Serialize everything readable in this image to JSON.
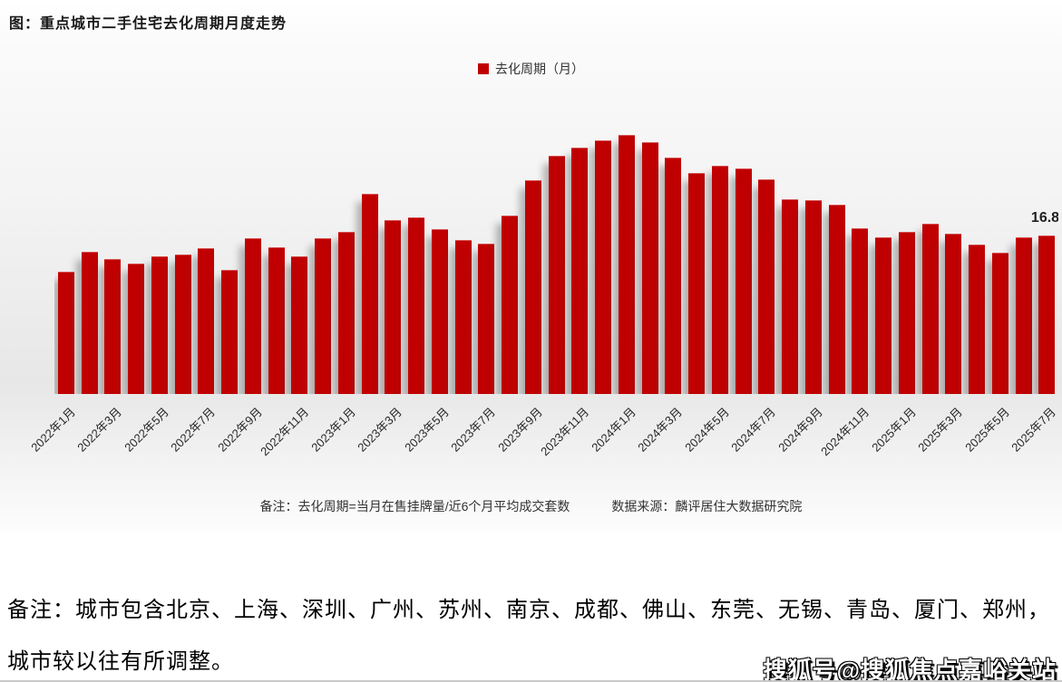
{
  "title": "图：重点城市二手住宅去化周期月度走势",
  "legend": {
    "label": "去化周期（月）",
    "color": "#c00000"
  },
  "chart_data": {
    "type": "bar",
    "title": "重点城市二手住宅去化周期月度走势",
    "series_name": "去化周期（月）",
    "categories": [
      "2022年1月",
      "2022年2月",
      "2022年3月",
      "2022年4月",
      "2022年5月",
      "2022年6月",
      "2022年7月",
      "2022年8月",
      "2022年9月",
      "2022年10月",
      "2022年11月",
      "2022年12月",
      "2023年1月",
      "2023年2月",
      "2023年3月",
      "2023年4月",
      "2023年5月",
      "2023年6月",
      "2023年7月",
      "2023年8月",
      "2023年9月",
      "2023年10月",
      "2023年11月",
      "2023年12月",
      "2024年1月",
      "2024年2月",
      "2024年3月",
      "2024年4月",
      "2024年5月",
      "2024年6月",
      "2024年7月",
      "2024年8月",
      "2024年9月",
      "2024年10月",
      "2024年11月",
      "2024年12月",
      "2025年1月",
      "2025年2月",
      "2025年3月",
      "2025年4月",
      "2025年5月",
      "2025年6月",
      "2025年7月"
    ],
    "values": [
      13.0,
      15.1,
      14.3,
      13.8,
      14.6,
      14.8,
      15.4,
      13.1,
      16.5,
      15.5,
      14.6,
      16.5,
      17.2,
      21.2,
      18.4,
      18.7,
      17.5,
      16.3,
      15.9,
      18.9,
      22.6,
      25.2,
      26.1,
      26.9,
      27.4,
      26.7,
      25.0,
      23.4,
      24.2,
      23.9,
      22.7,
      20.6,
      20.5,
      20.1,
      17.6,
      16.6,
      17.2,
      18.0,
      17.0,
      15.8,
      15.0,
      16.6,
      16.8
    ],
    "last_value_label": "16.8",
    "xlabel": "",
    "ylabel": "",
    "ylim": [
      0,
      28.4
    ],
    "x_tick_step": 2,
    "grid": false,
    "legend_position": "top-center",
    "bar_color": "#c00000"
  },
  "notes": {
    "formula": "备注：去化周期=当月在售挂牌量/近6个月平均成交套数",
    "source": "数据来源：麟评居住大数据研究院"
  },
  "footer": {
    "line1": "备注：城市包含北京、上海、深圳、广州、苏州、南京、成都、佛山、东莞、无锡、青岛、厦门、郑州，",
    "line2": "城市较以往有所调整。"
  },
  "watermark": "搜狐号@搜狐焦点嘉峪关站"
}
